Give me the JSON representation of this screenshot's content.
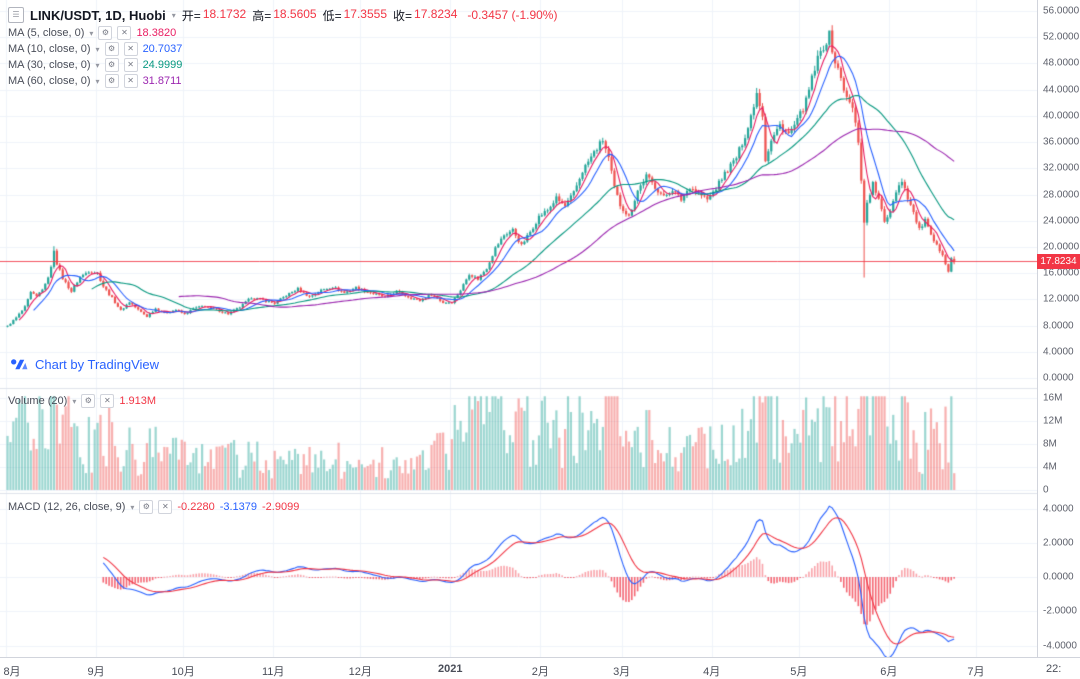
{
  "header": {
    "symbol": "LINK/USDT, 1D, Huobi",
    "ohlc": [
      {
        "label": "开=",
        "value": "18.1732"
      },
      {
        "label": "高=",
        "value": "18.5605"
      },
      {
        "label": "低=",
        "value": "17.3555"
      },
      {
        "label": "收=",
        "value": "17.8234"
      }
    ],
    "change": "-0.3457 (-1.90%)"
  },
  "indicators": {
    "ma": [
      {
        "label": "MA (5, close, 0)",
        "value": "18.3820",
        "color": "#e91e63"
      },
      {
        "label": "MA (10, close, 0)",
        "value": "20.7037",
        "color": "#2962ff"
      },
      {
        "label": "MA (30, close, 0)",
        "value": "24.9999",
        "color": "#089981"
      },
      {
        "label": "MA (60, close, 0)",
        "value": "31.8711",
        "color": "#9c27b0"
      }
    ],
    "volume": {
      "label": "Volume (20)",
      "value": "1.913M",
      "value_color": "#f23645"
    },
    "macd": {
      "label": "MACD (12, 26, close, 9)",
      "values": [
        {
          "text": "-0.2280",
          "color": "#f23645"
        },
        {
          "text": "-3.1379",
          "color": "#2962ff"
        },
        {
          "text": "-2.9099",
          "color": "#f23645"
        }
      ]
    }
  },
  "attribution": "Chart by TradingView",
  "axes": {
    "price_ticks": [
      "56.0000",
      "52.0000",
      "48.0000",
      "44.0000",
      "40.0000",
      "36.0000",
      "32.0000",
      "28.0000",
      "24.0000",
      "20.0000",
      "16.0000",
      "12.0000",
      "8.0000",
      "4.0000",
      "0.0000"
    ],
    "volume_ticks": [
      {
        "label": "16M",
        "v": 16
      },
      {
        "label": "12M",
        "v": 12
      },
      {
        "label": "8M",
        "v": 8
      },
      {
        "label": "4M",
        "v": 4
      },
      {
        "label": "0",
        "v": 0
      }
    ],
    "macd_ticks": [
      {
        "label": "4.0000",
        "v": 4
      },
      {
        "label": "2.0000",
        "v": 2
      },
      {
        "label": "0.0000",
        "v": 0
      },
      {
        "label": "-2.0000",
        "v": -2
      },
      {
        "label": "-4.0000",
        "v": -4
      }
    ],
    "time_labels": [
      {
        "label": "8月",
        "i": 0
      },
      {
        "label": "9月",
        "i": 31
      },
      {
        "label": "10月",
        "i": 61
      },
      {
        "label": "11月",
        "i": 92
      },
      {
        "label": "12月",
        "i": 122
      },
      {
        "label": "2021",
        "i": 153,
        "strong": true
      },
      {
        "label": "2月",
        "i": 184
      },
      {
        "label": "3月",
        "i": 212
      },
      {
        "label": "4月",
        "i": 243
      },
      {
        "label": "5月",
        "i": 273
      },
      {
        "label": "6月",
        "i": 304
      },
      {
        "label": "7月",
        "i": 334
      }
    ],
    "corner_label": "22:",
    "last_price_label": "17.8234"
  },
  "chart_data": {
    "type": "candlestick",
    "symbol": "LINK/USDT",
    "interval": "1D",
    "exchange": "Huobi",
    "title": "LINK/USDT, 1D, Huobi",
    "price_axis_range": [
      0,
      56
    ],
    "volume_axis_range_millions": [
      0,
      16
    ],
    "macd_axis_range": [
      -4,
      4
    ],
    "visible_bars": 327,
    "total_slots": 354,
    "ma_periods": [
      5,
      10,
      30,
      60
    ],
    "macd_params": [
      12,
      26,
      9
    ],
    "volume_ma_period": 20,
    "interpolation": "linear between anchors plus deterministic noise",
    "close_anchors": [
      [
        0,
        7.9
      ],
      [
        3,
        9.2
      ],
      [
        6,
        10.8
      ],
      [
        8,
        13
      ],
      [
        10,
        12.4
      ],
      [
        13,
        14.2
      ],
      [
        15,
        16.8
      ],
      [
        16,
        19.6
      ],
      [
        17,
        17.5
      ],
      [
        19,
        15.2
      ],
      [
        22,
        13.2
      ],
      [
        25,
        15.4
      ],
      [
        28,
        16.3
      ],
      [
        31,
        16
      ],
      [
        33,
        14
      ],
      [
        36,
        12.2
      ],
      [
        39,
        10.3
      ],
      [
        42,
        11.6
      ],
      [
        45,
        10.4
      ],
      [
        48,
        9.4
      ],
      [
        51,
        10.6
      ],
      [
        54,
        9.9
      ],
      [
        58,
        10.4
      ],
      [
        61,
        9.7
      ],
      [
        64,
        10.6
      ],
      [
        68,
        11
      ],
      [
        72,
        10.4
      ],
      [
        76,
        9.8
      ],
      [
        80,
        10.8
      ],
      [
        84,
        12.3
      ],
      [
        88,
        11.9
      ],
      [
        92,
        11.4
      ],
      [
        96,
        12.6
      ],
      [
        100,
        13.6
      ],
      [
        104,
        12.4
      ],
      [
        108,
        13.4
      ],
      [
        112,
        13.9
      ],
      [
        116,
        13
      ],
      [
        120,
        13.8
      ],
      [
        122,
        13.4
      ],
      [
        126,
        12.9
      ],
      [
        130,
        12.3
      ],
      [
        134,
        13.2
      ],
      [
        138,
        12.4
      ],
      [
        142,
        11.8
      ],
      [
        146,
        12.8
      ],
      [
        150,
        11.5
      ],
      [
        153,
        11.6
      ],
      [
        156,
        13.4
      ],
      [
        159,
        15.9
      ],
      [
        162,
        15.1
      ],
      [
        165,
        16.8
      ],
      [
        168,
        19.8
      ],
      [
        171,
        21.8
      ],
      [
        174,
        22.6
      ],
      [
        177,
        20.2
      ],
      [
        180,
        22.3
      ],
      [
        183,
        24.6
      ],
      [
        186,
        25.6
      ],
      [
        189,
        27.4
      ],
      [
        192,
        26.2
      ],
      [
        195,
        28.2
      ],
      [
        198,
        31.6
      ],
      [
        202,
        34.4
      ],
      [
        205,
        36.3
      ],
      [
        207,
        33.5
      ],
      [
        209,
        29
      ],
      [
        211,
        26.4
      ],
      [
        214,
        24.6
      ],
      [
        217,
        28.6
      ],
      [
        220,
        30.8
      ],
      [
        223,
        29.2
      ],
      [
        226,
        27.6
      ],
      [
        229,
        28.8
      ],
      [
        232,
        27.2
      ],
      [
        235,
        29.2
      ],
      [
        238,
        28.2
      ],
      [
        241,
        27.2
      ],
      [
        244,
        29
      ],
      [
        247,
        31.2
      ],
      [
        251,
        33.6
      ],
      [
        255,
        38.2
      ],
      [
        258,
        43.6
      ],
      [
        260,
        40.2
      ],
      [
        261,
        33.4
      ],
      [
        263,
        36.2
      ],
      [
        266,
        38.6
      ],
      [
        269,
        37.2
      ],
      [
        272,
        39.2
      ],
      [
        275,
        42.2
      ],
      [
        277,
        45.6
      ],
      [
        279,
        48.6
      ],
      [
        281,
        50.6
      ],
      [
        283,
        52.3
      ],
      [
        285,
        48.2
      ],
      [
        287,
        45.8
      ],
      [
        289,
        42.6
      ],
      [
        291,
        41.2
      ],
      [
        293,
        36.2
      ],
      [
        294,
        30.4
      ],
      [
        295,
        23.6
      ],
      [
        296,
        26.8
      ],
      [
        298,
        29.6
      ],
      [
        300,
        27.2
      ],
      [
        302,
        23.8
      ],
      [
        304,
        25.6
      ],
      [
        306,
        28.6
      ],
      [
        308,
        30.2
      ],
      [
        310,
        27.6
      ],
      [
        312,
        25.2
      ],
      [
        314,
        22.6
      ],
      [
        316,
        24.1
      ],
      [
        318,
        21.6
      ],
      [
        320,
        20.1
      ],
      [
        322,
        19
      ],
      [
        323,
        17.6
      ],
      [
        324,
        16.3
      ],
      [
        325,
        18.3
      ],
      [
        326,
        17.8234
      ]
    ],
    "volume_anchors_millions": [
      [
        0,
        5
      ],
      [
        8,
        11
      ],
      [
        16,
        14
      ],
      [
        20,
        9
      ],
      [
        31,
        7
      ],
      [
        45,
        6
      ],
      [
        61,
        4.5
      ],
      [
        75,
        4
      ],
      [
        92,
        5
      ],
      [
        105,
        4.5
      ],
      [
        122,
        4
      ],
      [
        140,
        3.5
      ],
      [
        153,
        6
      ],
      [
        160,
        13
      ],
      [
        168,
        15
      ],
      [
        177,
        9
      ],
      [
        184,
        9
      ],
      [
        196,
        10
      ],
      [
        205,
        13
      ],
      [
        210,
        15
      ],
      [
        214,
        9
      ],
      [
        228,
        6
      ],
      [
        243,
        6
      ],
      [
        255,
        8
      ],
      [
        258,
        11
      ],
      [
        261,
        13
      ],
      [
        270,
        7
      ],
      [
        279,
        9
      ],
      [
        283,
        11
      ],
      [
        290,
        8
      ],
      [
        295,
        16
      ],
      [
        298,
        12
      ],
      [
        304,
        8
      ],
      [
        308,
        9
      ],
      [
        314,
        7
      ],
      [
        320,
        6
      ],
      [
        324,
        10
      ],
      [
        326,
        7
      ]
    ],
    "wick_overrides": {
      "16": {
        "high": 20.11
      },
      "283": {
        "high": 52.88
      },
      "295": {
        "low": 15.33
      }
    },
    "last_bar": {
      "open": 18.1732,
      "high": 18.5605,
      "low": 17.3555,
      "close": 17.8234
    },
    "last_values": {
      "ma5": 18.382,
      "ma10": 20.7037,
      "ma30": 24.9999,
      "ma60": 31.8711,
      "volume_ma": "1.913M",
      "macd_hist": -0.228,
      "macd": -3.1379,
      "signal": -2.9099
    }
  },
  "colors": {
    "up": "#26a69a",
    "down": "#ef5350",
    "vol_up": "rgba(38,166,154,0.45)",
    "vol_down": "rgba(239,83,80,0.45)",
    "grid": "#f0f3fa",
    "separator": "#e0e3eb",
    "macd_line": "#2962ff",
    "signal_line": "#f23645",
    "hist_pos": "rgba(242,54,69,0.45)",
    "hist_neg": "rgba(242,54,69,0.75)",
    "last_line": "#f23645",
    "badge_bg": "#f23645"
  }
}
